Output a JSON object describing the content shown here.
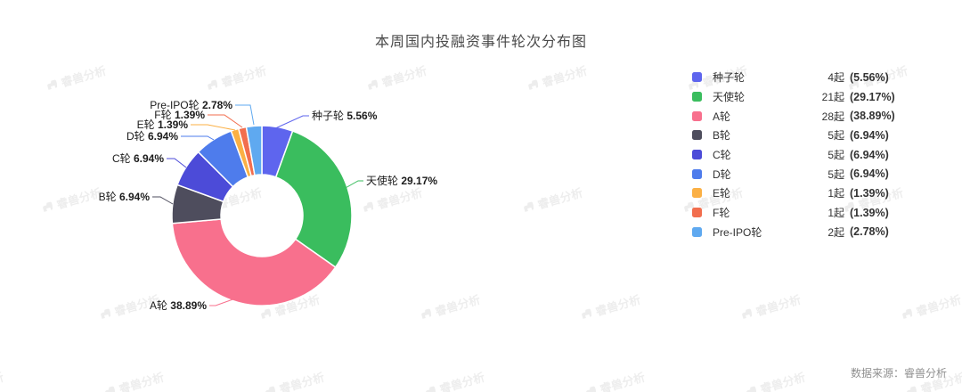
{
  "chart_data": {
    "type": "pie",
    "title": "本周国内投融资事件轮次分布图",
    "donut": true,
    "start_angle": "top",
    "clockwise": true,
    "legend_position": "right",
    "label_format": "{name} {pct}%",
    "unit": "起",
    "items": [
      {
        "name": "种子轮",
        "count": 4,
        "pct": 5.56,
        "count_label": "4起",
        "pct_label": "(5.56%)",
        "color": "#5E65EE"
      },
      {
        "name": "天使轮",
        "count": 21,
        "pct": 29.17,
        "count_label": "21起",
        "pct_label": "(29.17%)",
        "color": "#3ABD5E"
      },
      {
        "name": "A轮",
        "count": 28,
        "pct": 38.89,
        "count_label": "28起",
        "pct_label": "(38.89%)",
        "color": "#F8708D"
      },
      {
        "name": "B轮",
        "count": 5,
        "pct": 6.94,
        "count_label": "5起",
        "pct_label": "(6.94%)",
        "color": "#4E4D5D"
      },
      {
        "name": "C轮",
        "count": 5,
        "pct": 6.94,
        "count_label": "5起",
        "pct_label": "(6.94%)",
        "color": "#4C4BD8"
      },
      {
        "name": "D轮",
        "count": 5,
        "pct": 6.94,
        "count_label": "5起",
        "pct_label": "(6.94%)",
        "color": "#4E7CEC"
      },
      {
        "name": "E轮",
        "count": 1,
        "pct": 1.39,
        "count_label": "1起",
        "pct_label": "(1.39%)",
        "color": "#FBB045"
      },
      {
        "name": "F轮",
        "count": 1,
        "pct": 1.39,
        "count_label": "1起",
        "pct_label": "(1.39%)",
        "color": "#F26E4E"
      },
      {
        "name": "Pre-IPO轮",
        "count": 2,
        "pct": 2.78,
        "count_label": "2起",
        "pct_label": "(2.78%)",
        "color": "#5FA9F0"
      }
    ]
  },
  "watermark": {
    "text": "睿兽分析"
  },
  "footer": {
    "source": "数据来源：睿兽分析"
  }
}
